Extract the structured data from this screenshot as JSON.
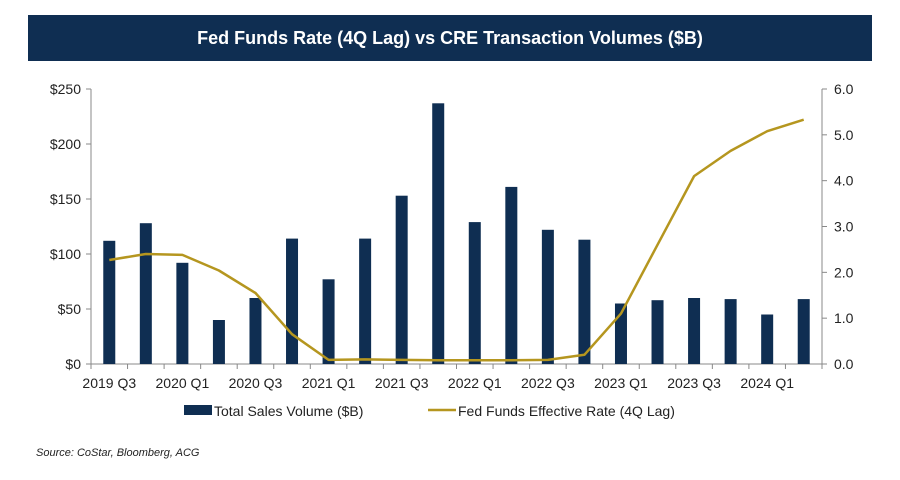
{
  "chart_data": {
    "type": "bar",
    "title": "Fed Funds Rate (4Q Lag) vs CRE Transaction Volumes ($B)",
    "categories": [
      "2019 Q3",
      "2019 Q4",
      "2020 Q1",
      "2020 Q2",
      "2020 Q3",
      "2020 Q4",
      "2021 Q1",
      "2021 Q2",
      "2021 Q3",
      "2021 Q4",
      "2022 Q1",
      "2022 Q2",
      "2022 Q3",
      "2022 Q4",
      "2023 Q1",
      "2023 Q2",
      "2023 Q3",
      "2023 Q4",
      "2024 Q1",
      "2024 Q2"
    ],
    "x_tick_labels": [
      "2019 Q3",
      "",
      "2020 Q1",
      "",
      "2020 Q3",
      "",
      "2021 Q1",
      "",
      "2021 Q3",
      "",
      "2022 Q1",
      "",
      "2022 Q3",
      "",
      "2023 Q1",
      "",
      "2023 Q3",
      "",
      "2024 Q1",
      ""
    ],
    "series": [
      {
        "name": "Total Sales Volume ($B)",
        "type": "bar",
        "axis": "left",
        "color": "#0f2e52",
        "values": [
          112,
          128,
          92,
          40,
          60,
          114,
          77,
          114,
          153,
          237,
          129,
          161,
          122,
          113,
          55,
          58,
          60,
          59,
          45,
          59
        ]
      },
      {
        "name": "Fed Funds Effective Rate (4Q Lag)",
        "type": "line",
        "axis": "right",
        "color": "#b5961f",
        "values": [
          2.27,
          2.4,
          2.38,
          2.04,
          1.55,
          0.65,
          0.09,
          0.1,
          0.09,
          0.08,
          0.08,
          0.08,
          0.09,
          0.2,
          1.1,
          2.6,
          4.1,
          4.65,
          5.08,
          5.33
        ]
      }
    ],
    "y_left": {
      "min": 0,
      "max": 250,
      "ticks": [
        "$0",
        "$50",
        "$100",
        "$150",
        "$200",
        "$250"
      ]
    },
    "y_right": {
      "min": 0,
      "max": 6,
      "ticks": [
        "0.0",
        "1.0",
        "2.0",
        "3.0",
        "4.0",
        "5.0",
        "6.0"
      ]
    },
    "grid": false,
    "legend": "bottom"
  },
  "source": "Source: CoStar, Bloomberg, ACG"
}
